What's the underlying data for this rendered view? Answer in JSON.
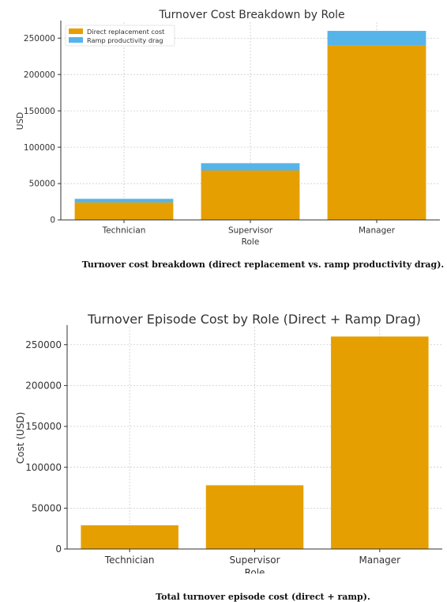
{
  "colors": {
    "direct": "#E69F00",
    "ramp": "#56B4E9",
    "grid": "#cccccc",
    "axis": "#333333",
    "text": "#333333"
  },
  "chart_data": [
    {
      "type": "bar",
      "stacked": true,
      "title": "Turnover Cost Breakdown by Role",
      "xlabel": "Role",
      "ylabel": "USD",
      "categories": [
        "Technician",
        "Supervisor",
        "Manager"
      ],
      "series": [
        {
          "name": "Direct replacement cost",
          "values": [
            24000,
            68000,
            240000
          ]
        },
        {
          "name": "Ramp productivity drag",
          "values": [
            5000,
            10000,
            20000
          ]
        }
      ],
      "ylim": [
        0,
        272000
      ],
      "yticks": [
        0,
        50000,
        100000,
        150000,
        200000,
        250000
      ],
      "grid": true,
      "legend": "top-left",
      "caption": "Turnover cost breakdown (direct replacement vs. ramp productivity drag)."
    },
    {
      "type": "bar",
      "title": "Turnover Episode Cost by Role (Direct + Ramp Drag)",
      "xlabel": "Role",
      "ylabel": "Cost (USD)",
      "categories": [
        "Technician",
        "Supervisor",
        "Manager"
      ],
      "series": [
        {
          "name": "",
          "values": [
            29000,
            78000,
            260000
          ]
        }
      ],
      "ylim": [
        0,
        272000
      ],
      "yticks": [
        0,
        50000,
        100000,
        150000,
        200000,
        250000
      ],
      "grid": true,
      "caption": "Total turnover episode cost (direct + ramp)."
    }
  ]
}
